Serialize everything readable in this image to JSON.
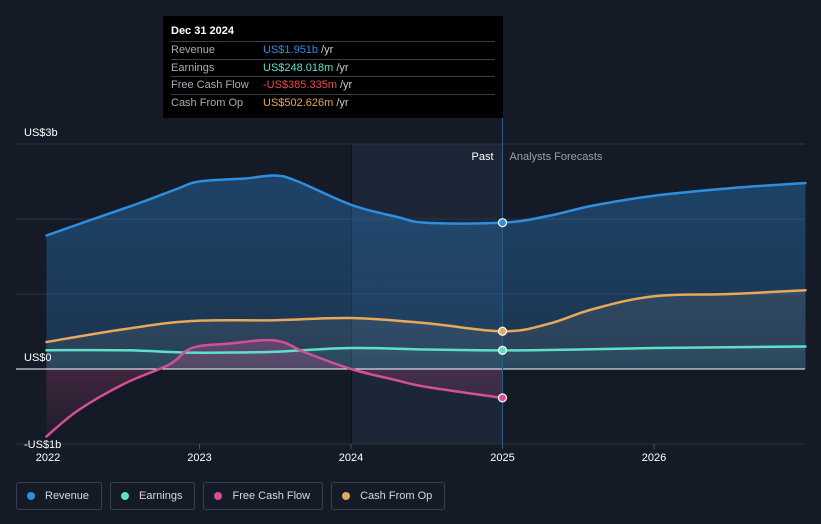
{
  "chart_data": {
    "type": "area",
    "title": "",
    "xlabel": "",
    "ylabel": "",
    "y_unit": "US$b",
    "ylim": [
      -1,
      3
    ],
    "x_ticks": [
      {
        "label": "2022",
        "x": 2022.0
      },
      {
        "label": "2023",
        "x": 2023.0
      },
      {
        "label": "2024",
        "x": 2024.0
      },
      {
        "label": "2025",
        "x": 2025.0
      },
      {
        "label": "2026",
        "x": 2026.0
      }
    ],
    "y_labels": [
      {
        "label": "US$3b",
        "value": 3
      },
      {
        "label": "US$0",
        "value": 0
      },
      {
        "label": "-US$1b",
        "value": -1
      }
    ],
    "split_x": 2025.0,
    "region_labels": {
      "past": "Past",
      "forecast": "Analysts Forecasts"
    },
    "series": [
      {
        "name": "Revenue",
        "color": "#2e8ee0",
        "x": [
          2021.99,
          2022.3,
          2022.6,
          2022.85,
          2023.0,
          2023.3,
          2023.5,
          2023.65,
          2024.0,
          2024.3,
          2024.5,
          2025.0,
          2025.3,
          2025.6,
          2026.0,
          2026.5,
          2027.0
        ],
        "values": [
          1.78,
          2.0,
          2.21,
          2.4,
          2.5,
          2.54,
          2.58,
          2.5,
          2.19,
          2.03,
          1.95,
          1.951,
          2.04,
          2.18,
          2.31,
          2.41,
          2.48
        ]
      },
      {
        "name": "Earnings",
        "color": "#5ee0c8",
        "x": [
          2021.99,
          2022.5,
          2022.9,
          2023.2,
          2023.5,
          2024.0,
          2024.5,
          2025.0,
          2025.5,
          2026.0,
          2026.5,
          2027.0
        ],
        "values": [
          0.25,
          0.25,
          0.22,
          0.22,
          0.23,
          0.28,
          0.26,
          0.248,
          0.26,
          0.28,
          0.29,
          0.3
        ]
      },
      {
        "name": "Free Cash Flow",
        "color": "#d44f93",
        "x": [
          2021.99,
          2022.2,
          2022.5,
          2022.8,
          2022.95,
          2023.2,
          2023.5,
          2023.7,
          2024.0,
          2024.3,
          2024.5,
          2025.0
        ],
        "values": [
          -0.9,
          -0.55,
          -0.2,
          0.06,
          0.28,
          0.34,
          0.38,
          0.22,
          0.0,
          -0.15,
          -0.24,
          -0.385
        ]
      },
      {
        "name": "Cash From Op",
        "color": "#e8a85a",
        "x": [
          2021.99,
          2022.5,
          2022.95,
          2023.5,
          2024.0,
          2024.5,
          2025.0,
          2025.3,
          2025.6,
          2026.0,
          2026.5,
          2027.0
        ],
        "values": [
          0.36,
          0.53,
          0.64,
          0.65,
          0.68,
          0.61,
          0.503,
          0.6,
          0.8,
          0.97,
          1.0,
          1.05
        ]
      }
    ],
    "tooltip": {
      "date": "Dec 31 2024",
      "rows": [
        {
          "label": "Revenue",
          "value": "US$1.951b",
          "unit": "/yr",
          "color": "#2e8ee0"
        },
        {
          "label": "Earnings",
          "value": "US$248.018m",
          "unit": "/yr",
          "color": "#5ee0c8"
        },
        {
          "label": "Free Cash Flow",
          "value": "-US$385.335m",
          "unit": "/yr",
          "color": "#f0484e"
        },
        {
          "label": "Cash From Op",
          "value": "US$502.626m",
          "unit": "/yr",
          "color": "#e8a85a"
        }
      ]
    }
  },
  "legend": [
    {
      "label": "Revenue",
      "color": "#2e8ee0"
    },
    {
      "label": "Earnings",
      "color": "#5ee0c8"
    },
    {
      "label": "Free Cash Flow",
      "color": "#d44f93"
    },
    {
      "label": "Cash From Op",
      "color": "#e8a85a"
    }
  ]
}
